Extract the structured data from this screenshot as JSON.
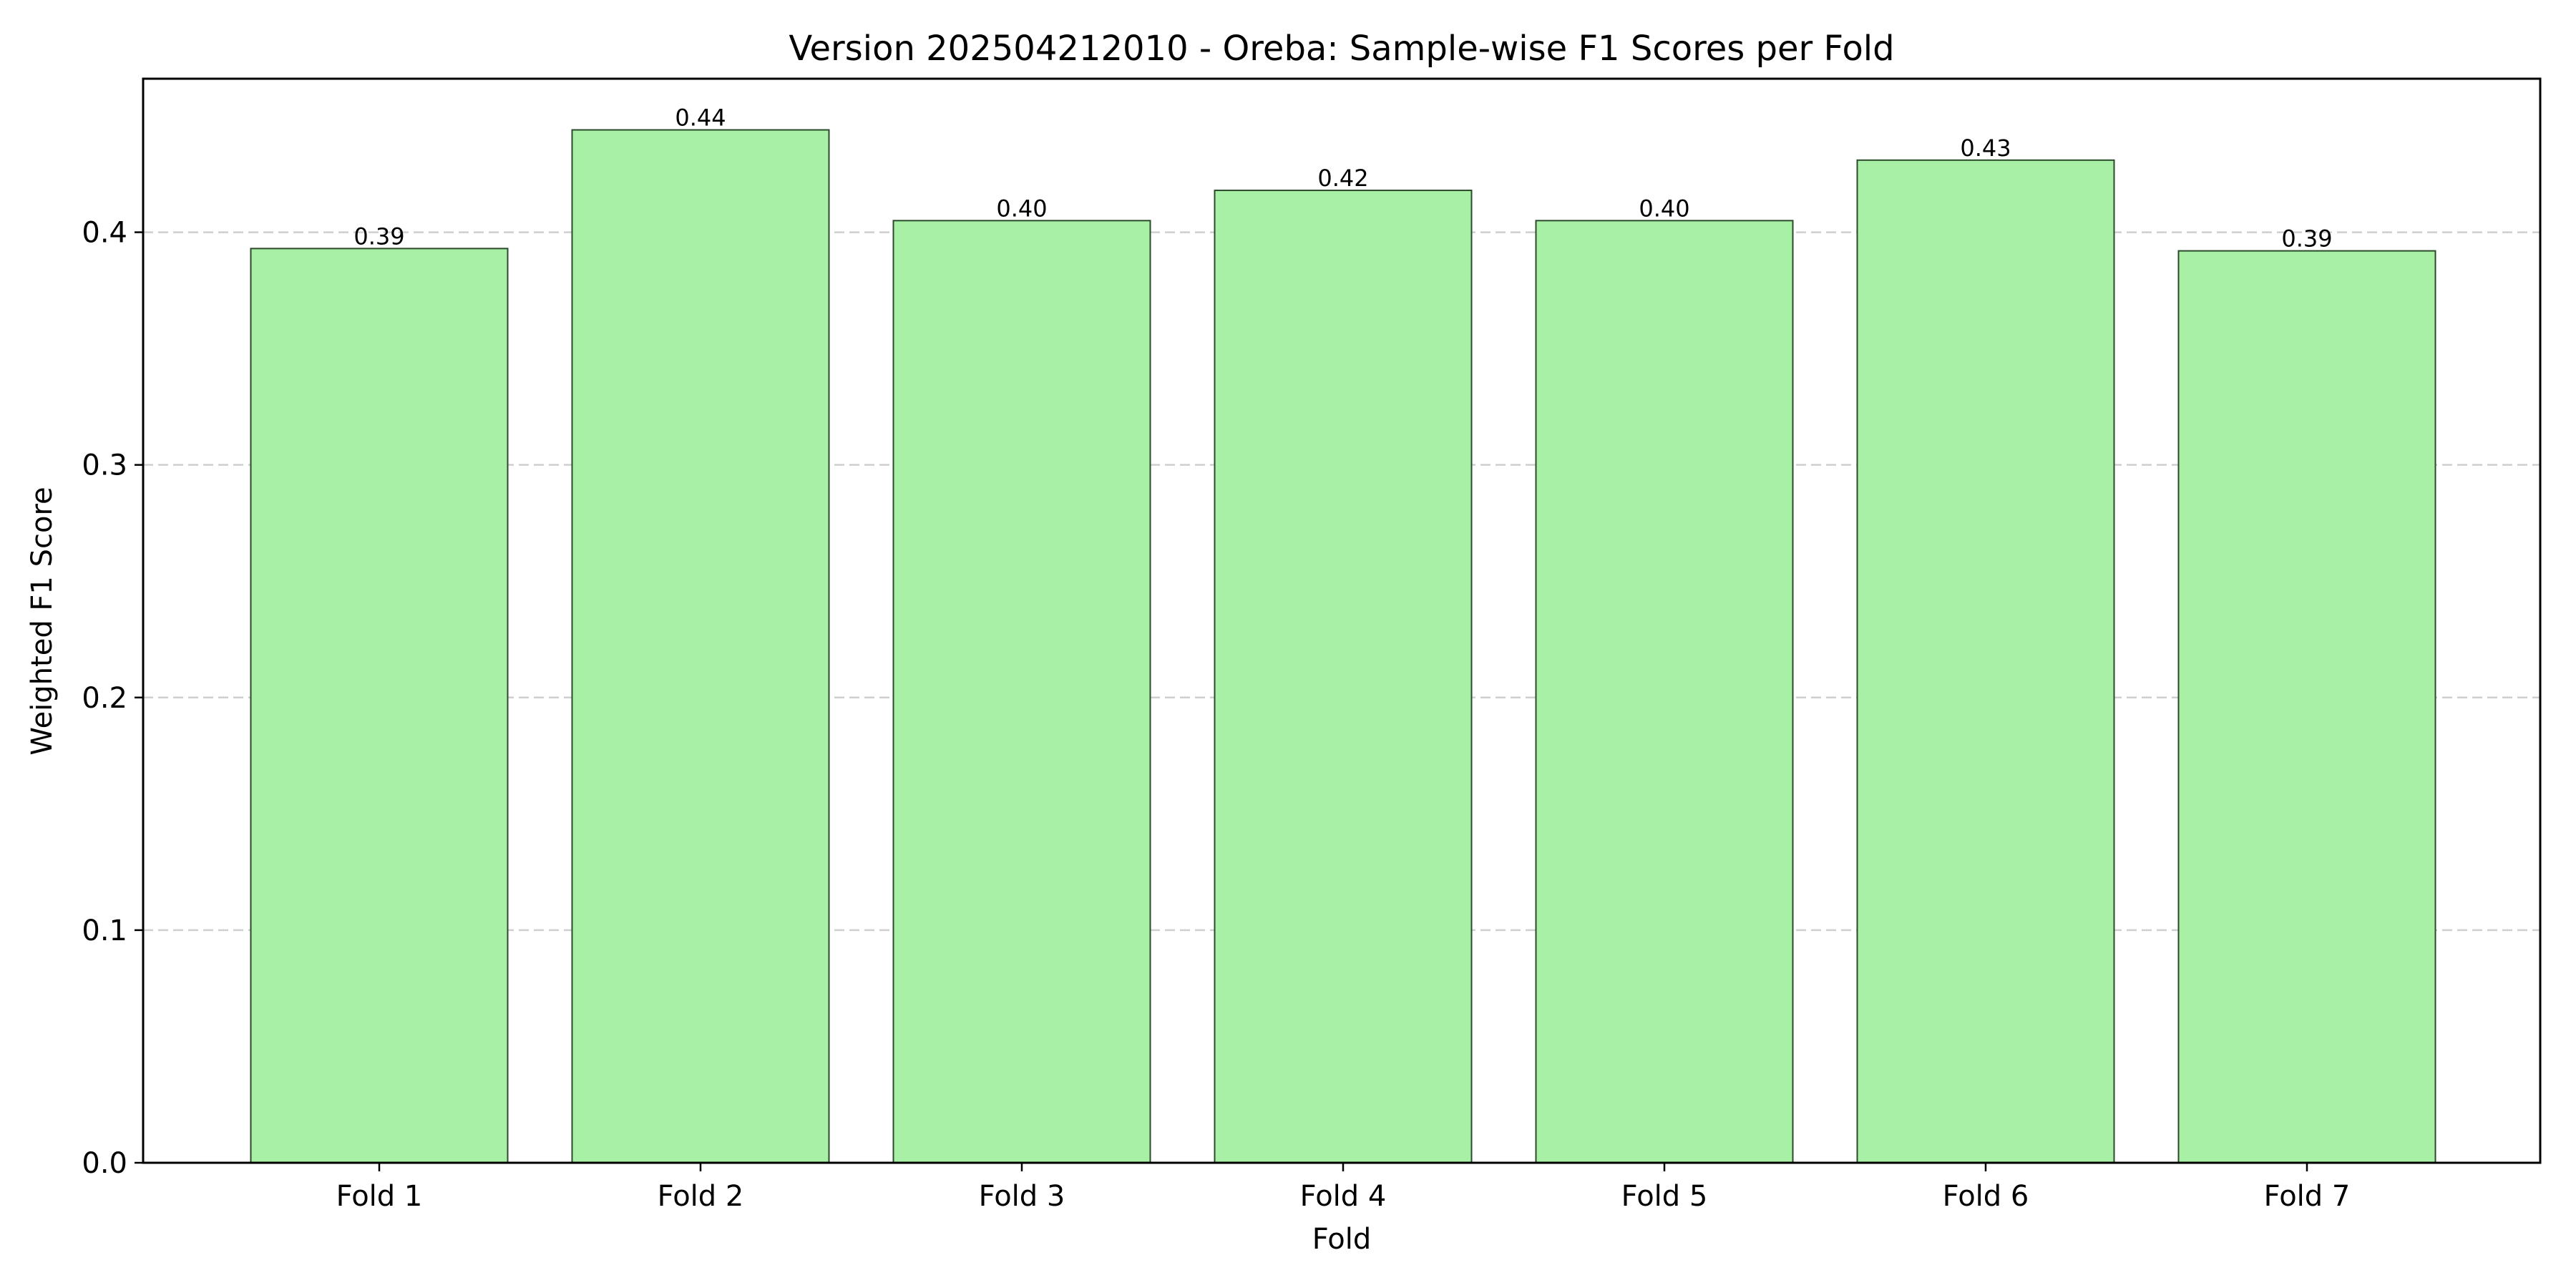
{
  "chart_data": {
    "type": "bar",
    "title": "Version 202504212010 - Oreba: Sample-wise F1 Scores per Fold",
    "xlabel": "Fold",
    "ylabel": "Weighted F1 Score",
    "categories": [
      "Fold 1",
      "Fold 2",
      "Fold 3",
      "Fold 4",
      "Fold 5",
      "Fold 6",
      "Fold 7"
    ],
    "values": [
      0.393,
      0.444,
      0.405,
      0.418,
      0.405,
      0.431,
      0.392
    ],
    "value_labels": [
      "0.39",
      "0.44",
      "0.40",
      "0.42",
      "0.40",
      "0.43",
      "0.39"
    ],
    "ylim": [
      0,
      0.466
    ],
    "yticks": [
      0.0,
      0.1,
      0.2,
      0.3,
      0.4
    ],
    "ytick_labels": [
      "0.0",
      "0.1",
      "0.2",
      "0.3",
      "0.4"
    ],
    "grid": "y-dashed",
    "bar_color": "#a8f0a5",
    "bar_edge_color": "#2c4a2c"
  }
}
